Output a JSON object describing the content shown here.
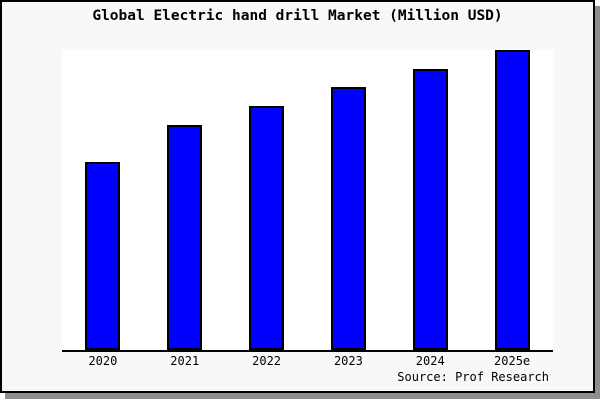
{
  "figure": {
    "title": "Global Electric hand drill Market (Million USD)",
    "source_caption": "Source: Prof Research"
  },
  "chart_data": {
    "type": "bar",
    "title": "Global Electric hand drill Market (Million USD)",
    "categories": [
      "2020",
      "2021",
      "2022",
      "2023",
      "2024",
      "2025e"
    ],
    "values": [
      62.7,
      75.0,
      81.3,
      87.7,
      93.7,
      100.0
    ],
    "value_unit": "relative height, % of tallest bar (no y-axis scale shown)",
    "xlabel": "",
    "ylabel": "",
    "ylim": [
      0,
      100
    ],
    "grid": false,
    "legend": "none",
    "y_axis_ticks_visible": false,
    "annotation": "Source: Prof Research"
  },
  "colors": {
    "bar_fill": "#0000ff",
    "bar_border": "#000000",
    "plot_background": "#ffffff",
    "frame_background": "#f8f8f8",
    "frame_border": "#000000",
    "shadow": "#8f8f8f",
    "text": "#000000"
  }
}
